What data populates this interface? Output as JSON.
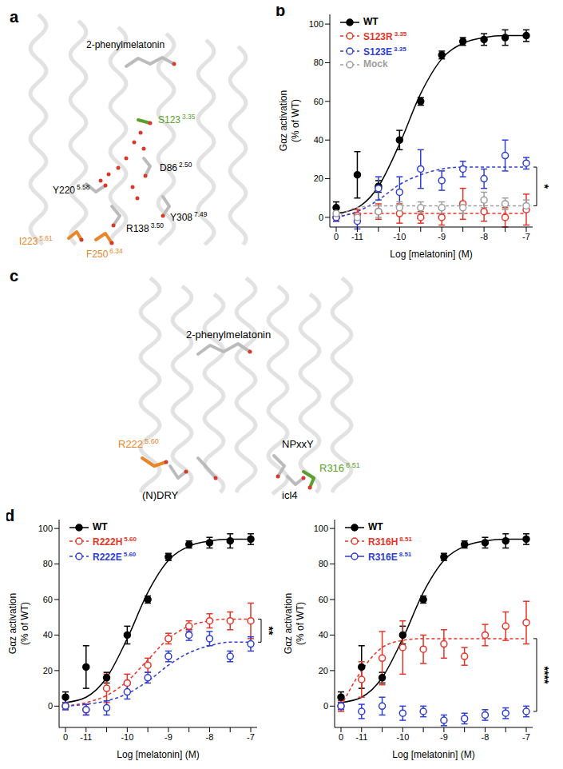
{
  "chart_data": [
    {
      "panel": "b",
      "type": "line",
      "xlabel": "Log [melatonin] (M)",
      "ylabel": [
        "Gαz activation",
        "(% of WT)"
      ],
      "categories": [
        "0",
        "-11",
        null,
        "-10",
        null,
        "-9",
        null,
        "-8",
        null,
        "-7"
      ],
      "ylim": [
        -5,
        105
      ],
      "yticks": [
        0,
        20,
        40,
        60,
        80,
        100
      ],
      "series": [
        {
          "name": "WT",
          "color": "#000000",
          "marker": "circle",
          "line_style": "solid",
          "values": [
            5,
            22,
            16,
            40,
            60,
            84,
            91,
            92,
            93,
            94
          ],
          "errors": [
            3,
            12,
            3,
            5,
            2,
            2,
            2,
            3,
            4,
            3
          ],
          "fit": [
            2,
            5,
            16,
            38,
            64,
            82,
            90,
            93,
            94,
            94
          ]
        },
        {
          "name": "S123R 3.35",
          "color": "#e53528",
          "marker": "open_circle",
          "line_style": "dashed",
          "values": [
            0,
            1,
            3,
            2,
            0,
            0,
            7,
            3,
            0,
            4
          ],
          "errors": [
            2,
            3,
            4,
            5,
            3,
            4,
            8,
            5,
            5,
            8
          ],
          "fit": [
            0,
            2,
            2,
            2,
            2,
            2,
            2,
            2,
            2,
            2
          ]
        },
        {
          "name": "S123E 3.35",
          "color": "#2f3fd0",
          "marker": "open_circle",
          "line_style": "dashed",
          "values": [
            0,
            -2,
            15,
            13,
            25,
            19,
            25,
            20,
            32,
            28
          ],
          "errors": [
            2,
            4,
            6,
            8,
            10,
            5,
            4,
            5,
            8,
            3
          ],
          "fit": [
            0,
            3,
            9,
            17,
            22,
            25,
            26,
            26,
            26,
            26
          ]
        },
        {
          "name": "Mock",
          "color": "#9e9e9e",
          "marker": "open_circle",
          "line_style": "dashed",
          "values": [
            2,
            0,
            3,
            5,
            5,
            5,
            5,
            9,
            7,
            6
          ],
          "errors": [
            2,
            2,
            3,
            3,
            3,
            3,
            3,
            4,
            3,
            3
          ],
          "fit": [
            0,
            5,
            6,
            6,
            6,
            6,
            6,
            6,
            6,
            6
          ]
        }
      ],
      "significance": {
        "text": "*",
        "between": [
          "S123E 3.35",
          "Mock"
        ]
      }
    },
    {
      "panel": "d",
      "type": "line",
      "xlabel": "Log [melatonin] (M)",
      "ylabel": [
        "Gαz activation",
        "(% of WT)"
      ],
      "categories": [
        "0",
        "-11",
        null,
        "-10",
        null,
        "-9",
        null,
        "-8",
        null,
        "-7"
      ],
      "ylim": [
        -12,
        105
      ],
      "yticks": [
        0,
        20,
        40,
        60,
        80,
        100
      ],
      "series": [
        {
          "name": "WT",
          "color": "#000000",
          "marker": "circle",
          "line_style": "solid",
          "values": [
            5,
            22,
            16,
            40,
            60,
            84,
            91,
            92,
            93,
            94
          ],
          "errors": [
            3,
            12,
            3,
            5,
            2,
            2,
            2,
            3,
            4,
            3
          ],
          "fit": [
            2,
            5,
            16,
            38,
            64,
            82,
            90,
            93,
            94,
            94
          ]
        },
        {
          "name": "R222H 5.60",
          "color": "#e53528",
          "marker": "open_circle",
          "line_style": "dashed",
          "values": [
            0,
            -2,
            10,
            13,
            23,
            38,
            45,
            48,
            48,
            48
          ],
          "errors": [
            2,
            3,
            8,
            5,
            4,
            3,
            3,
            4,
            5,
            10
          ],
          "fit": [
            0,
            2,
            6,
            14,
            26,
            38,
            45,
            48,
            49,
            49
          ]
        },
        {
          "name": "R222E 5.60",
          "color": "#2f3fd0",
          "marker": "open_circle",
          "line_style": "dashed",
          "values": [
            0,
            -2,
            -1,
            8,
            16,
            28,
            40,
            38,
            28,
            35
          ],
          "errors": [
            2,
            3,
            4,
            4,
            3,
            3,
            3,
            4,
            3,
            4
          ],
          "fit": [
            0,
            1,
            3,
            7,
            14,
            23,
            30,
            34,
            36,
            36
          ]
        }
      ],
      "significance": {
        "text": "**",
        "between": [
          "R222H 5.60",
          "R222E 5.60"
        ]
      }
    },
    {
      "panel": "",
      "type": "line",
      "xlabel": "Log [melatonin] (M)",
      "ylabel": [
        "Gαz activation",
        "(% of WT)"
      ],
      "categories": [
        "0",
        "-11",
        null,
        "-10",
        null,
        "-9",
        null,
        "-8",
        null,
        "-7"
      ],
      "ylim": [
        -12,
        105
      ],
      "yticks": [
        0,
        20,
        40,
        60,
        80,
        100
      ],
      "series": [
        {
          "name": "WT",
          "color": "#000000",
          "marker": "circle",
          "line_style": "solid",
          "values": [
            5,
            22,
            16,
            40,
            60,
            84,
            91,
            92,
            93,
            94
          ],
          "errors": [
            3,
            12,
            3,
            5,
            2,
            2,
            2,
            3,
            4,
            3
          ],
          "fit": [
            2,
            5,
            16,
            38,
            64,
            82,
            90,
            93,
            94,
            94
          ]
        },
        {
          "name": "R316H 8.51",
          "color": "#e53528",
          "marker": "open_circle",
          "line_style": "dashed",
          "values": [
            0,
            15,
            27,
            33,
            32,
            35,
            28,
            40,
            45,
            47
          ],
          "errors": [
            3,
            10,
            15,
            15,
            8,
            8,
            5,
            6,
            8,
            12
          ],
          "fit": [
            0,
            20,
            33,
            37,
            38,
            38,
            38,
            38,
            38,
            38
          ]
        },
        {
          "name": "R316E 8.51",
          "color": "#2f3fd0",
          "marker": "open_circle",
          "values": [
            0,
            -3,
            0,
            -4,
            -3,
            -8,
            -7,
            -5,
            -4,
            -3
          ],
          "errors": [
            2,
            4,
            5,
            4,
            3,
            3,
            3,
            3,
            3,
            3
          ]
        }
      ],
      "significance": {
        "text": "****",
        "between": [
          "R316H 8.51",
          "R316E 8.51"
        ]
      }
    }
  ],
  "structures": [
    {
      "panel": "a",
      "labels": [
        {
          "text": "2-phenylmelatonin",
          "color": "#000000"
        },
        {
          "text": "S123 3.35",
          "color": "#5aa02c"
        },
        {
          "text": "D86 2.50",
          "color": "#000000"
        },
        {
          "text": "Y220 5.58",
          "color": "#000000"
        },
        {
          "text": "R138 3.50",
          "color": "#000000"
        },
        {
          "text": "Y308 7.49",
          "color": "#000000"
        },
        {
          "text": "I223 5.61",
          "color": "#e8862a"
        },
        {
          "text": "F250 6.34",
          "color": "#e8862a"
        }
      ]
    },
    {
      "panel": "c",
      "labels": [
        {
          "text": "2-phenylmelatonin",
          "color": "#000000"
        },
        {
          "text": "R222 5.60",
          "color": "#e8862a"
        },
        {
          "text": "(N)DRY",
          "color": "#000000"
        },
        {
          "text": "NPxxY",
          "color": "#000000"
        },
        {
          "text": "icl4",
          "color": "#000000"
        },
        {
          "text": "R316 8.51",
          "color": "#5aa02c"
        }
      ]
    }
  ]
}
